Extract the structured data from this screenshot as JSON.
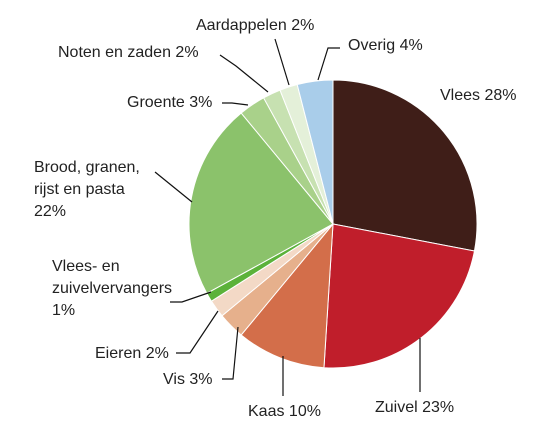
{
  "chart_data": {
    "type": "pie",
    "title": "",
    "slices": [
      {
        "label": "Vlees 28%",
        "value": 28,
        "color": "#3f1e18"
      },
      {
        "label": "Zuivel 23%",
        "value": 23,
        "color": "#c01e2b"
      },
      {
        "label": "Kaas 10%",
        "value": 10,
        "color": "#d36e4a"
      },
      {
        "label": "Vis 3%",
        "value": 3,
        "color": "#e6b08c"
      },
      {
        "label": "Eieren 2%",
        "value": 2,
        "color": "#f3d9c6"
      },
      {
        "label": "Vlees- en\nzuivelvervangers\n1%",
        "value": 1,
        "color": "#5cb23a"
      },
      {
        "label": "Brood, granen,\nrijst en pasta\n22%",
        "value": 22,
        "color": "#8bc26b"
      },
      {
        "label": "Groente 3%",
        "value": 3,
        "color": "#a9d18a"
      },
      {
        "label": "Noten en zaden 2%",
        "value": 2,
        "color": "#c7e1b1"
      },
      {
        "label": "Aardappelen 2%",
        "value": 2,
        "color": "#e4f0d9"
      },
      {
        "label": "Overig 4%",
        "value": 4,
        "color": "#a9cdea"
      }
    ],
    "legend": "none"
  }
}
